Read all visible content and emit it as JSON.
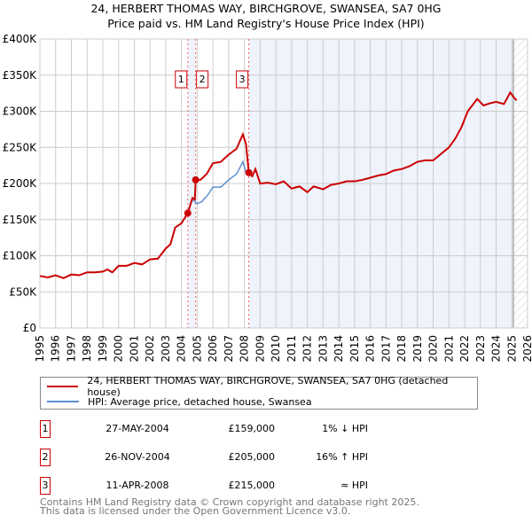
{
  "chart_data": {
    "type": "line",
    "title": "24, HERBERT THOMAS WAY, BIRCHGROVE, SWANSEA, SA7 0HG",
    "subtitle": "Price paid vs. HM Land Registry's House Price Index (HPI)",
    "xlim": [
      1995,
      2026
    ],
    "ylim": [
      0,
      400000
    ],
    "y_ticks": [
      "£0",
      "£50K",
      "£100K",
      "£150K",
      "£200K",
      "£250K",
      "£300K",
      "£350K",
      "£400K"
    ],
    "y_tick_values": [
      0,
      50000,
      100000,
      150000,
      200000,
      250000,
      300000,
      350000,
      400000
    ],
    "x_ticks": [
      "1995",
      "1996",
      "1997",
      "1998",
      "1999",
      "2000",
      "2001",
      "2002",
      "2003",
      "2004",
      "2005",
      "2006",
      "2007",
      "2008",
      "2009",
      "2010",
      "2011",
      "2012",
      "2013",
      "2014",
      "2015",
      "2016",
      "2017",
      "2018",
      "2019",
      "2020",
      "2021",
      "2022",
      "2023",
      "2024",
      "2025",
      "2026"
    ],
    "grid": true,
    "colors": {
      "property": "#cc0000",
      "hpi": "#5b8fd0",
      "shade": "#eef3fc"
    },
    "series": [
      {
        "name": "24, HERBERT THOMAS WAY, BIRCHGROVE, SWANSEA, SA7 0HG (detached house)",
        "color": "#cc0000",
        "x": [
          1995,
          1995.5,
          1996,
          1996.5,
          1997,
          1997.5,
          1998,
          1998.5,
          1999,
          1999.3,
          1999.6,
          2000,
          2000.5,
          2001,
          2001.5,
          2002,
          2002.5,
          2003,
          2003.3,
          2003.6,
          2004,
          2004.4,
          2004.7,
          2004.85,
          2004.9,
          2005.2,
          2005.6,
          2006,
          2006.5,
          2007,
          2007.5,
          2007.9,
          2008.1,
          2008.28,
          2008.5,
          2008.7,
          2009,
          2009.5,
          2010,
          2010.5,
          2011,
          2011.5,
          2012,
          2012.4,
          2013,
          2013.5,
          2014,
          2014.5,
          2015,
          2015.5,
          2016,
          2016.5,
          2017,
          2017.5,
          2018,
          2018.5,
          2019,
          2019.5,
          2020,
          2020.5,
          2021,
          2021.4,
          2021.8,
          2022.2,
          2022.8,
          2023.2,
          2023.6,
          2024,
          2024.5,
          2024.9,
          2025.1,
          2025.3
        ],
        "y": [
          72000,
          70000,
          73000,
          69000,
          74000,
          73000,
          77000,
          77000,
          78000,
          81000,
          77000,
          86000,
          86000,
          90000,
          88000,
          95000,
          96000,
          110000,
          116000,
          139000,
          145000,
          159000,
          180000,
          178000,
          205000,
          205000,
          213000,
          228000,
          230000,
          240000,
          248000,
          268000,
          255000,
          215000,
          210000,
          220000,
          200000,
          201000,
          199000,
          203000,
          193000,
          196000,
          188000,
          196000,
          192000,
          198000,
          200000,
          203000,
          203000,
          205000,
          208000,
          211000,
          213000,
          218000,
          220000,
          224000,
          230000,
          232000,
          232000,
          241000,
          250000,
          262000,
          278000,
          300000,
          317000,
          308000,
          311000,
          313000,
          310000,
          326000,
          320000,
          315000
        ]
      },
      {
        "name": "HPI: Average price, detached house, Swansea",
        "color": "#5b8fd0",
        "x": [
          1995,
          1995.5,
          1996,
          1996.5,
          1997,
          1997.5,
          1998,
          1998.5,
          1999,
          1999.3,
          1999.6,
          2000,
          2000.5,
          2001,
          2001.5,
          2002,
          2002.5,
          2003,
          2003.3,
          2003.6,
          2004,
          2004.4,
          2004.7,
          2005,
          2005.3,
          2005.7,
          2006,
          2006.5,
          2007,
          2007.5,
          2007.9,
          2008.1,
          2008.3,
          2008.5,
          2008.7,
          2009,
          2009.5,
          2010,
          2010.5,
          2011,
          2011.5,
          2012,
          2012.4,
          2013,
          2013.5,
          2014,
          2014.5,
          2015,
          2015.5,
          2016,
          2016.5,
          2017,
          2017.5,
          2018,
          2018.5,
          2019,
          2019.5,
          2020,
          2020.5,
          2021,
          2021.4,
          2021.8,
          2022.2,
          2022.8,
          2023.2,
          2023.6,
          2024,
          2024.5,
          2024.9,
          2025.1,
          2025.3
        ],
        "y": [
          72000,
          70000,
          73000,
          69000,
          74000,
          73000,
          77000,
          77000,
          78000,
          81000,
          77000,
          86000,
          86000,
          90000,
          88000,
          95000,
          96000,
          110000,
          116000,
          139000,
          145000,
          160000,
          178000,
          172000,
          175000,
          185000,
          195000,
          195000,
          205000,
          213000,
          230000,
          215000,
          214000,
          210000,
          220000,
          200000,
          201000,
          199000,
          203000,
          193000,
          196000,
          188000,
          196000,
          192000,
          198000,
          200000,
          203000,
          203000,
          205000,
          208000,
          211000,
          213000,
          218000,
          220000,
          224000,
          230000,
          232000,
          232000,
          241000,
          250000,
          262000,
          278000,
          300000,
          317000,
          308000,
          311000,
          313000,
          310000,
          326000,
          320000,
          315000
        ]
      }
    ],
    "sales": [
      {
        "label": "1",
        "date": "27-MAY-2004",
        "x": 2004.4,
        "price": "£159,000",
        "value": 159000,
        "hpi": "1% ↓ HPI"
      },
      {
        "label": "2",
        "date": "26-NOV-2004",
        "x": 2004.9,
        "price": "£205,000",
        "value": 205000,
        "hpi": "16% ↑ HPI"
      },
      {
        "label": "3",
        "date": "11-APR-2008",
        "x": 2008.28,
        "price": "£215,000",
        "value": 215000,
        "hpi": "≈ HPI"
      }
    ],
    "forecast_start": 2025.1
  },
  "legend": {
    "property": "24, HERBERT THOMAS WAY, BIRCHGROVE, SWANSEA, SA7 0HG (detached house)",
    "hpi": "HPI: Average price, detached house, Swansea"
  },
  "footer": {
    "line1": "Contains HM Land Registry data © Crown copyright and database right 2025.",
    "line2": "This data is licensed under the Open Government Licence v3.0."
  }
}
